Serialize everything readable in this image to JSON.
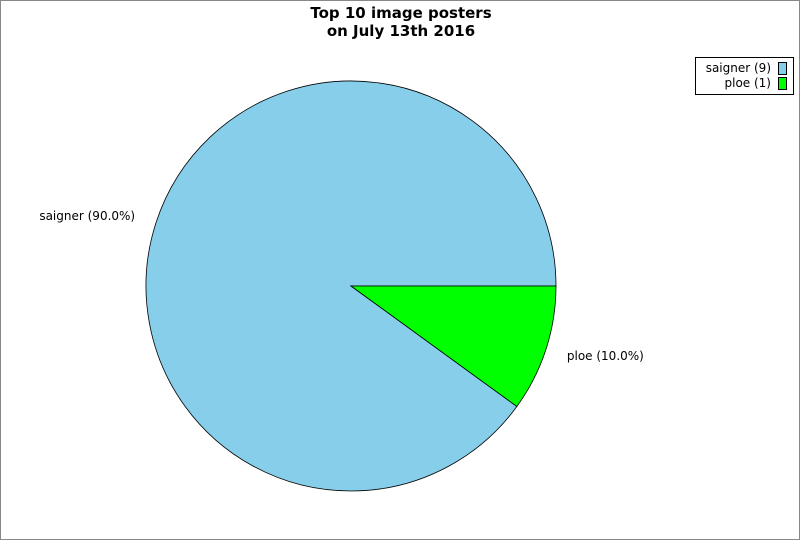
{
  "chart_data": {
    "type": "pie",
    "title": "Top 10 image posters\non July 13th 2016",
    "title_lines": [
      "Top 10 image posters",
      "on July 13th 2016"
    ],
    "slices": [
      {
        "name": "saigner",
        "value": 9,
        "percent_label": "saigner (90.0%)",
        "legend_label": "saigner (9)",
        "color": "#87CEEB"
      },
      {
        "name": "ploe",
        "value": 1,
        "percent_label": "ploe (10.0%)",
        "legend_label": "ploe (1)",
        "color": "#00FF00"
      }
    ],
    "legend_position": "top-right"
  }
}
